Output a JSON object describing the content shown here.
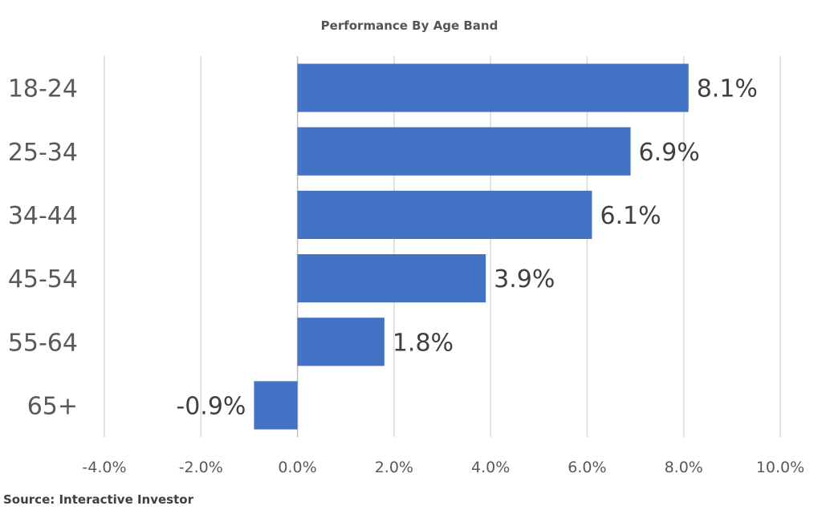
{
  "chart_data": {
    "type": "bar",
    "orientation": "horizontal",
    "title": "Performance By Age Band",
    "categories": [
      "18-24",
      "25-34",
      "34-44",
      "45-54",
      "55-64",
      "65+"
    ],
    "values": [
      8.1,
      6.9,
      6.1,
      3.9,
      1.8,
      -0.9
    ],
    "data_labels": [
      "8.1%",
      "6.9%",
      "6.1%",
      "3.9%",
      "1.8%",
      "-0.9%"
    ],
    "xlim": [
      -4.0,
      10.0
    ],
    "x_ticks": [
      -4.0,
      -2.0,
      0.0,
      2.0,
      4.0,
      6.0,
      8.0,
      10.0
    ],
    "x_tick_labels": [
      "-4.0%",
      "-2.0%",
      "0.0%",
      "2.0%",
      "4.0%",
      "6.0%",
      "8.0%",
      "10.0%"
    ],
    "grid": "vertical",
    "legend": "none",
    "bar_color": "#4472c4",
    "source": "Source: Interactive Investor"
  }
}
